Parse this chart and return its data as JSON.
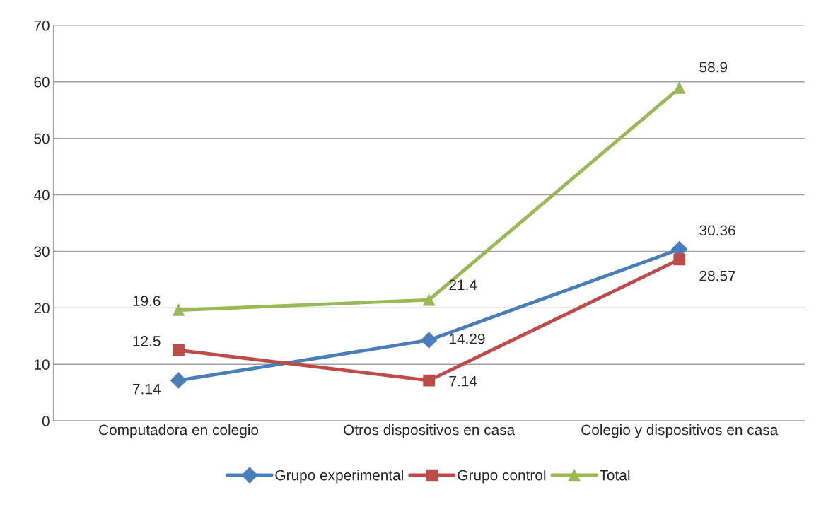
{
  "chart_data": {
    "type": "line",
    "categories": [
      "Computadora en colegio",
      "Otros dispositivos en casa",
      "Colegio y dispositivos en casa"
    ],
    "series": [
      {
        "name": "Grupo experimental",
        "color": "#4a7ebb",
        "marker": "diamond",
        "values": [
          7.14,
          14.29,
          30.36
        ]
      },
      {
        "name": "Grupo control",
        "color": "#be4b48",
        "marker": "square",
        "values": [
          12.5,
          7.14,
          28.57
        ]
      },
      {
        "name": "Total",
        "color": "#98b954",
        "marker": "triangle",
        "values": [
          19.6,
          21.4,
          58.9
        ]
      }
    ],
    "ylim": [
      0,
      70
    ],
    "yticks": [
      0,
      10,
      20,
      30,
      40,
      50,
      60,
      70
    ],
    "grid": "y",
    "legend": "bottom",
    "data_labels": true,
    "line_style": "solid"
  }
}
